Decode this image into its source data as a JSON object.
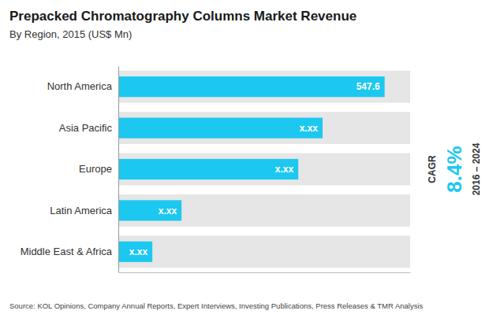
{
  "chart_data": {
    "type": "bar",
    "orientation": "horizontal",
    "title": "Prepacked Chromatography Columns Market Revenue",
    "subtitle": "By Region, 2015 (US$ Mn)",
    "categories": [
      "North America",
      "Asia Pacific",
      "Europe",
      "Latin America",
      "Middle East & Africa"
    ],
    "values": [
      547.6,
      420,
      370,
      130,
      70
    ],
    "value_labels": [
      "547.6",
      "x.xx",
      "x.xx",
      "x.xx",
      "x.xx"
    ],
    "data_labels": true,
    "color": "#1DC8F0",
    "xlim": [
      0,
      600
    ],
    "tick_labels": "y",
    "grid": false,
    "annotations": [
      {
        "text": "CAGR",
        "color": "#333333"
      },
      {
        "text": "8.4%",
        "color": "#1DC8F0"
      },
      {
        "text": "2016 – 2024",
        "color": "#333333"
      },
      {
        "text": "Source: KOL Opinions, Company Annual Reports, Expert Interviews, Investing Publications, Press Releases & TMR Analysis",
        "color": "#444444"
      }
    ]
  }
}
